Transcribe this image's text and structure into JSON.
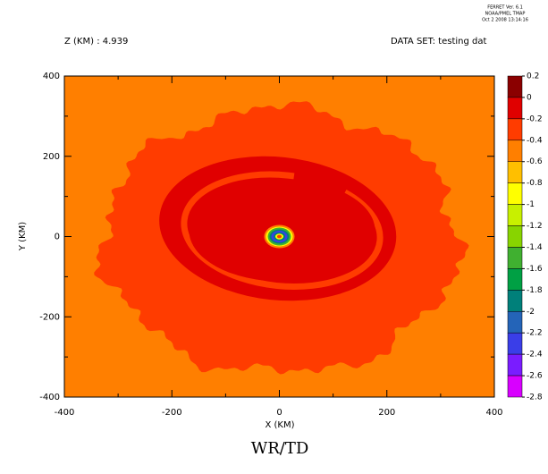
{
  "chart_data": {
    "type": "contour",
    "header": [
      "FERRET Ver. 6.1",
      "NOAA/PMEL TMAP",
      "Oct  2 2008 13:14:16"
    ],
    "subtitle_left": "Z (KM) : 4.939",
    "subtitle_right": "DATA SET: testing dat",
    "xlabel": "X (KM)",
    "ylabel": "Y (KM)",
    "title": "WR/TD",
    "xlim": [
      -400,
      400
    ],
    "ylim": [
      -400,
      400
    ],
    "xticks": [
      -400,
      -200,
      0,
      200,
      400
    ],
    "yticks": [
      -400,
      -200,
      0,
      200,
      400
    ],
    "levels": [
      0.2,
      0,
      -0.2,
      -0.4,
      -0.6,
      -0.8,
      -1,
      -1.2,
      -1.4,
      -1.6,
      -1.8,
      -2,
      -2.2,
      -2.4,
      -2.6,
      -2.8
    ],
    "colors": [
      "#8b0000",
      "#e00000",
      "#ff3c00",
      "#ff7f00",
      "#ffbf00",
      "#ffff00",
      "#c8f000",
      "#88d400",
      "#40b030",
      "#00a044",
      "#00807a",
      "#2464b8",
      "#3a3ee8",
      "#7a1cff",
      "#d800ff"
    ]
  }
}
